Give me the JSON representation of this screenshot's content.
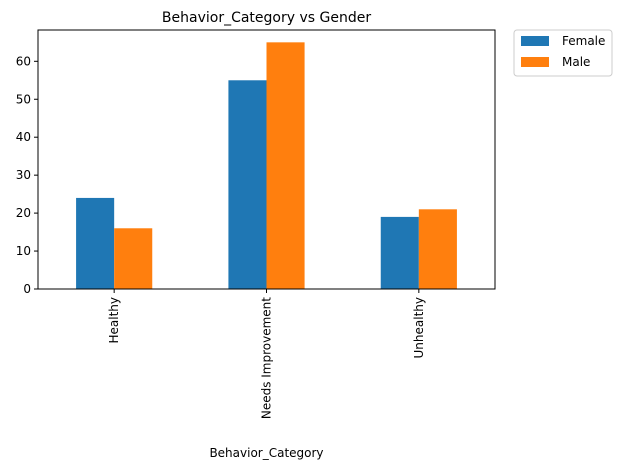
{
  "chart_data": {
    "type": "bar",
    "title": "Behavior_Category vs Gender",
    "xlabel": "Behavior_Category",
    "ylabel": "",
    "categories": [
      "Healthy",
      "Needs Improvement",
      "Unhealthy"
    ],
    "series": [
      {
        "name": "Female",
        "color": "#1f77b4",
        "values": [
          24,
          55,
          19
        ]
      },
      {
        "name": "Male",
        "color": "#ff7f0e",
        "values": [
          16,
          65,
          21
        ]
      }
    ],
    "ylim": [
      0,
      68.25
    ],
    "yticks": [
      0,
      10,
      20,
      30,
      40,
      50,
      60
    ],
    "grid": false,
    "legend_position": "outside-top-right"
  }
}
